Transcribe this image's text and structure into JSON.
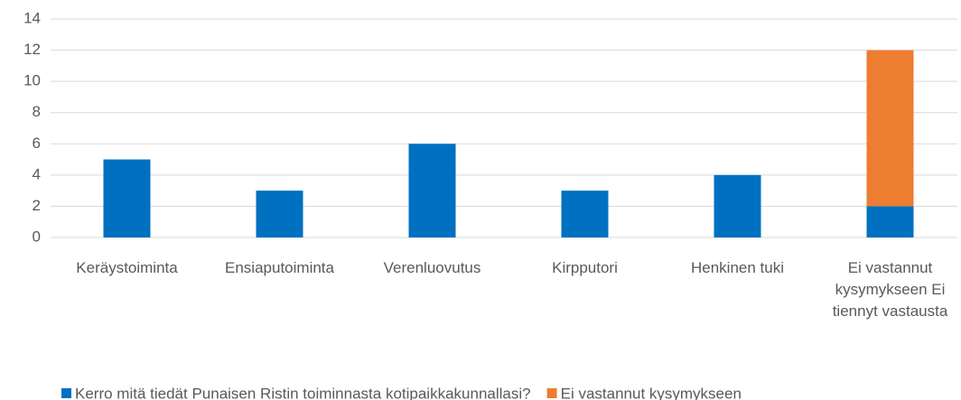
{
  "chart_data": {
    "type": "bar",
    "stacked": true,
    "categories": [
      "Keräystoiminta",
      "Ensiaputoiminta",
      "Verenluovutus",
      "Kirpputori",
      "Henkinen tuki",
      "Ei vastannut kysymykseen Ei tiennyt vastausta"
    ],
    "series": [
      {
        "name": "Kerro mitä tiedät Punaisen Ristin toiminnasta kotipaikkakunnallasi?",
        "color": "#0070c0",
        "values": [
          5,
          3,
          6,
          3,
          4,
          2
        ]
      },
      {
        "name": "Ei vastannut kysymykseen",
        "color": "#ed7d31",
        "values": [
          null,
          null,
          null,
          null,
          null,
          10
        ]
      }
    ],
    "ylim": [
      0,
      14
    ],
    "yticks": [
      0,
      2,
      4,
      6,
      8,
      10,
      12,
      14
    ],
    "grid": true,
    "legend": "bottom"
  }
}
